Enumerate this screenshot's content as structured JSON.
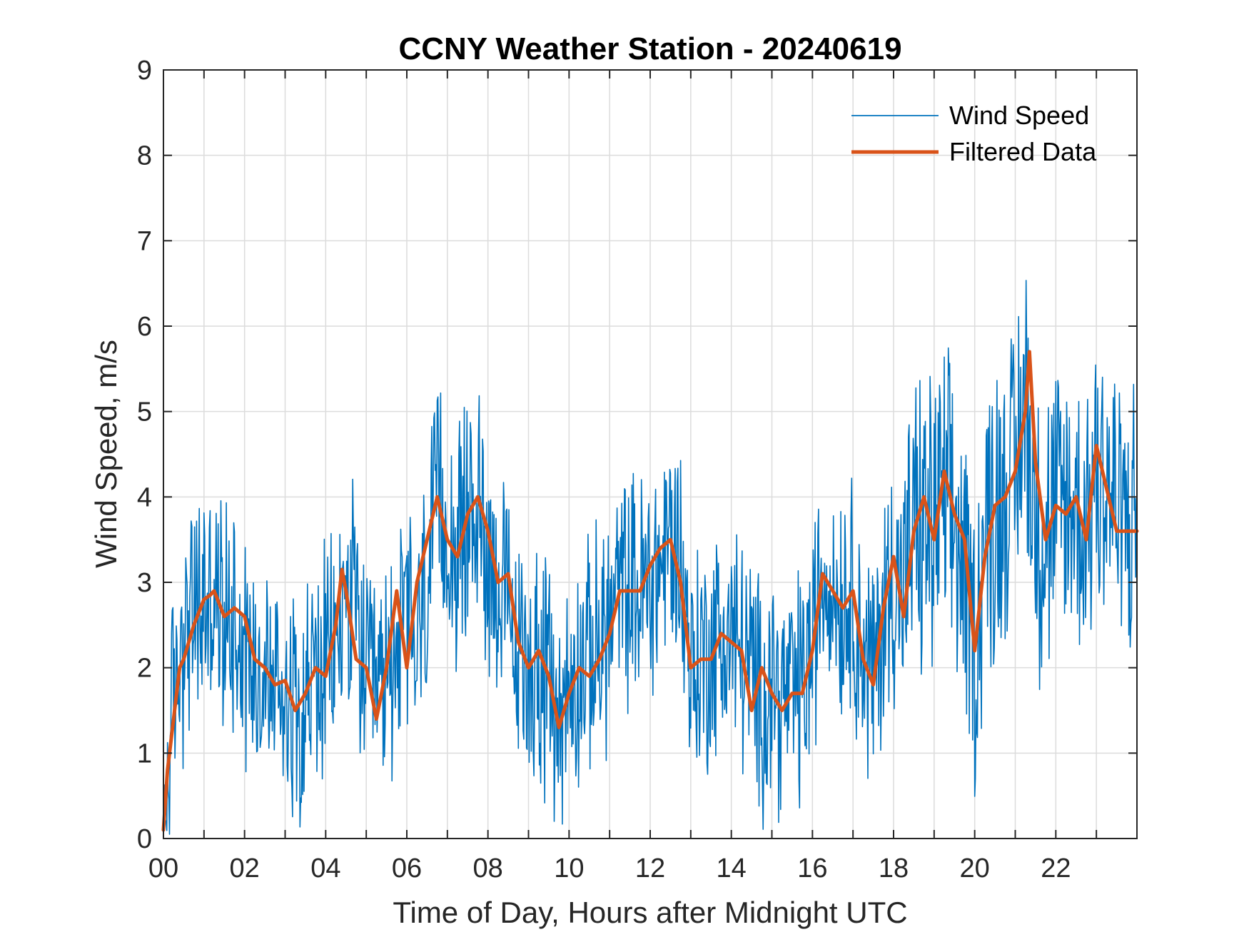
{
  "chart_data": {
    "type": "line",
    "title": "CCNY Weather Station - 20240619",
    "xlabel": "Time of Day, Hours after Midnight UTC",
    "ylabel": "Wind Speed, m/s",
    "xlim": [
      0,
      24
    ],
    "ylim": [
      0,
      9
    ],
    "grid": true,
    "legend_position": "top-right",
    "xtick_labels": [
      "00",
      "02",
      "04",
      "06",
      "08",
      "10",
      "12",
      "14",
      "16",
      "18",
      "20",
      "22"
    ],
    "ytick_labels": [
      "0",
      "1",
      "2",
      "3",
      "4",
      "5",
      "6",
      "7",
      "8",
      "9"
    ],
    "colors": {
      "raw": "#0072BD",
      "filtered": "#D95319",
      "grid": "#dcdcdc",
      "axes": "#262626"
    },
    "series": [
      {
        "name": "Wind Speed",
        "style": "thin-noisy",
        "x": [
          0,
          0.25,
          0.5,
          0.75,
          1,
          1.25,
          1.5,
          1.75,
          2,
          2.25,
          2.5,
          2.75,
          3,
          3.25,
          3.5,
          3.75,
          4,
          4.25,
          4.5,
          4.75,
          5,
          5.25,
          5.5,
          5.75,
          6,
          6.25,
          6.5,
          6.75,
          7,
          7.25,
          7.5,
          7.75,
          8,
          8.25,
          8.5,
          8.75,
          9,
          9.25,
          9.5,
          9.75,
          10,
          10.25,
          10.5,
          10.75,
          11,
          11.25,
          11.5,
          11.75,
          12,
          12.25,
          12.5,
          12.75,
          13,
          13.25,
          13.5,
          13.75,
          14,
          14.25,
          14.5,
          14.75,
          15,
          15.25,
          15.5,
          15.75,
          16,
          16.25,
          16.5,
          16.75,
          17,
          17.25,
          17.5,
          17.75,
          18,
          18.25,
          18.5,
          18.75,
          19,
          19.25,
          19.5,
          19.75,
          20,
          20.25,
          20.5,
          20.75,
          21,
          21.25,
          21.5,
          21.75,
          22,
          22.25,
          22.5,
          22.75,
          23,
          23.25,
          23.5,
          23.75,
          24
        ],
        "values": [
          0.1,
          1.6,
          2.4,
          2.6,
          2.8,
          2.7,
          2.6,
          2.7,
          2.3,
          2.0,
          1.9,
          1.8,
          1.8,
          1.6,
          1.7,
          1.9,
          2.0,
          2.2,
          2.9,
          2.6,
          1.8,
          1.6,
          1.9,
          2.3,
          2.6,
          2.2,
          3.0,
          3.9,
          3.6,
          3.3,
          3.8,
          3.9,
          3.4,
          3.0,
          2.6,
          2.0,
          2.1,
          2.0,
          1.8,
          1.4,
          1.7,
          2.0,
          2.1,
          2.3,
          2.5,
          2.9,
          2.9,
          2.9,
          3.0,
          3.2,
          3.5,
          3.3,
          2.0,
          2.1,
          2.2,
          2.3,
          2.4,
          2.2,
          1.9,
          1.6,
          1.9,
          1.6,
          1.7,
          1.8,
          2.2,
          3.1,
          3.0,
          2.8,
          2.9,
          2.1,
          1.9,
          2.6,
          3.2,
          2.8,
          3.6,
          3.6,
          3.7,
          3.9,
          3.7,
          3.0,
          2.2,
          3.5,
          3.9,
          4.1,
          4.2,
          5.3,
          3.7,
          3.5,
          3.8,
          3.9,
          3.8,
          3.7,
          4.4,
          4.2,
          3.8,
          3.6,
          3.6
        ]
      },
      {
        "name": "Filtered Data",
        "style": "thick",
        "x": [
          0,
          0.1,
          0.25,
          0.4,
          0.5,
          0.75,
          1,
          1.15,
          1.25,
          1.5,
          1.75,
          2,
          2.25,
          2.5,
          2.75,
          3,
          3.25,
          3.5,
          3.75,
          4,
          4.25,
          4.4,
          4.5,
          4.75,
          5,
          5.25,
          5.5,
          5.75,
          6,
          6.25,
          6.5,
          6.75,
          7,
          7.25,
          7.5,
          7.75,
          8,
          8.25,
          8.5,
          8.75,
          9,
          9.25,
          9.5,
          9.75,
          10,
          10.25,
          10.5,
          10.75,
          11,
          11.25,
          11.5,
          11.75,
          12,
          12.25,
          12.5,
          12.75,
          13,
          13.25,
          13.5,
          13.75,
          14,
          14.25,
          14.5,
          14.75,
          15,
          15.25,
          15.5,
          15.75,
          16,
          16.25,
          16.5,
          16.75,
          17,
          17.25,
          17.5,
          17.75,
          18,
          18.25,
          18.5,
          18.75,
          19,
          19.25,
          19.5,
          19.75,
          20,
          20.25,
          20.5,
          20.75,
          21,
          21.25,
          21.35,
          21.5,
          21.75,
          22,
          22.25,
          22.5,
          22.75,
          23,
          23.25,
          23.5,
          23.75,
          24
        ],
        "values": [
          0.1,
          0.8,
          1.4,
          2.0,
          2.1,
          2.5,
          2.8,
          2.85,
          2.9,
          2.6,
          2.7,
          2.6,
          2.1,
          2.0,
          1.8,
          1.85,
          1.5,
          1.7,
          2.0,
          1.9,
          2.5,
          3.15,
          2.9,
          2.1,
          2.0,
          1.4,
          2.0,
          2.9,
          2.0,
          3.0,
          3.5,
          4.0,
          3.5,
          3.3,
          3.8,
          4.0,
          3.6,
          3.0,
          3.1,
          2.3,
          2.0,
          2.2,
          1.9,
          1.3,
          1.7,
          2.0,
          1.9,
          2.1,
          2.4,
          2.9,
          2.9,
          2.9,
          3.2,
          3.4,
          3.5,
          3.0,
          2.0,
          2.1,
          2.1,
          2.4,
          2.3,
          2.2,
          1.5,
          2.0,
          1.7,
          1.5,
          1.7,
          1.7,
          2.2,
          3.1,
          2.9,
          2.7,
          2.9,
          2.1,
          1.8,
          2.7,
          3.3,
          2.6,
          3.6,
          4.0,
          3.5,
          4.3,
          3.8,
          3.5,
          2.2,
          3.3,
          3.9,
          4.0,
          4.3,
          5.0,
          5.7,
          4.4,
          3.5,
          3.9,
          3.8,
          4.0,
          3.5,
          4.6,
          4.1,
          3.6,
          3.6,
          3.6
        ]
      }
    ]
  }
}
